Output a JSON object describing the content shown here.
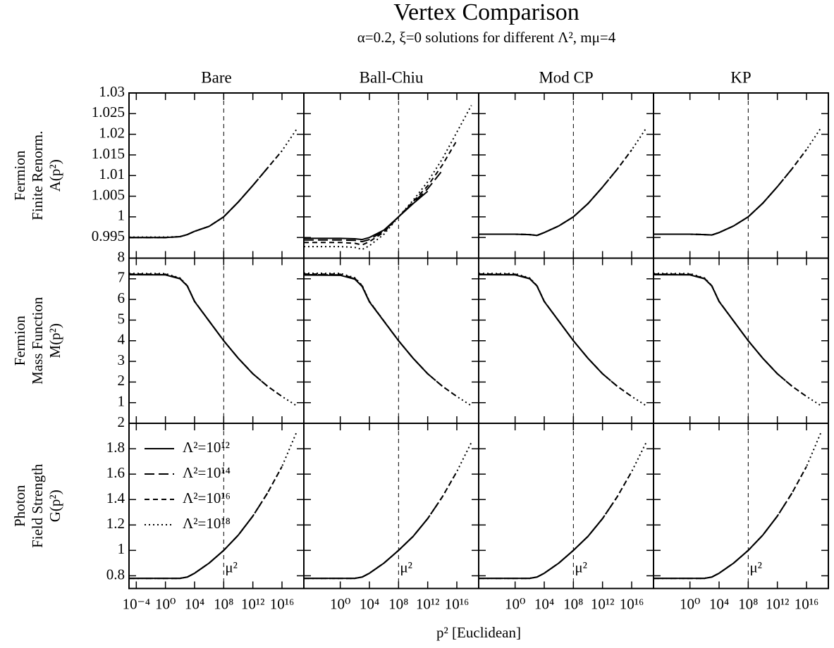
{
  "chart_data": {
    "type": "line",
    "title": "Vertex Comparison",
    "subtitle": "α=0.2, ξ=0 solutions for different Λ², mμ=4",
    "xlabel": "p² [Euclidean]",
    "log_x": true,
    "xlim": [
      1e-05,
      1e+19
    ],
    "x": [
      1e-05,
      1,
      100,
      1000,
      10000,
      1000000,
      100000000,
      10000000000,
      1000000000000,
      100000000000000,
      10000000000000000,
      1000000000000000000
    ],
    "reference": {
      "value": 100000000,
      "label": "μ²"
    },
    "legend": "upper left",
    "series": [
      {
        "name": "Λ²=10¹²",
        "color": "#000000",
        "dash": "solid"
      },
      {
        "name": "Λ²=10¹⁴",
        "color": "#000000",
        "dash": "longdash"
      },
      {
        "name": "Λ²=10¹⁶",
        "color": "#000000",
        "dash": "dashed"
      },
      {
        "name": "Λ²=10¹⁸",
        "color": "#000000",
        "dash": "dotted"
      }
    ],
    "columns": [
      {
        "title": "Bare",
        "xticks": [
          {
            "value": 0.0001,
            "label": "10⁻⁴"
          },
          {
            "value": 1,
            "label": "10⁰"
          },
          {
            "value": 10000,
            "label": "10⁴"
          },
          {
            "value": 100000000,
            "label": "10⁸"
          },
          {
            "value": 1000000000000,
            "label": "10¹²"
          },
          {
            "value": 10000000000000000,
            "label": "10¹⁶"
          }
        ]
      },
      {
        "title": "Ball-Chiu",
        "xticks": [
          {
            "value": 1,
            "label": "10⁰"
          },
          {
            "value": 10000,
            "label": "10⁴"
          },
          {
            "value": 100000000,
            "label": "10⁸"
          },
          {
            "value": 1000000000000,
            "label": "10¹²"
          },
          {
            "value": 10000000000000000,
            "label": "10¹⁶"
          }
        ]
      },
      {
        "title": "Mod CP",
        "xticks": [
          {
            "value": 1,
            "label": "10⁰"
          },
          {
            "value": 10000,
            "label": "10⁴"
          },
          {
            "value": 100000000,
            "label": "10⁸"
          },
          {
            "value": 1000000000000,
            "label": "10¹²"
          },
          {
            "value": 10000000000000000,
            "label": "10¹⁶"
          }
        ]
      },
      {
        "title": "KP",
        "xticks": [
          {
            "value": 1,
            "label": "10⁰"
          },
          {
            "value": 10000,
            "label": "10⁴"
          },
          {
            "value": 100000000,
            "label": "10⁸"
          },
          {
            "value": 1000000000000,
            "label": "10¹²"
          },
          {
            "value": 10000000000000000,
            "label": "10¹⁶"
          }
        ]
      }
    ],
    "rows": [
      {
        "ylabel": [
          "Fermion",
          "Finite Renorm.",
          "A(p²)"
        ],
        "ylim": [
          0.99,
          1.03
        ],
        "yticks": [
          0.995,
          1,
          1.005,
          1.01,
          1.015,
          1.02,
          1.025,
          1.03
        ],
        "panels": [
          {
            "series": [
              [
                0.995,
                0.995,
                0.9952,
                0.9957,
                0.9965,
                0.9977,
                1,
                1.0036,
                1.0076,
                null,
                null,
                null
              ],
              [
                0.995,
                0.995,
                0.9952,
                0.9957,
                0.9965,
                0.9977,
                1,
                1.0036,
                1.0076,
                1.0118,
                null,
                null
              ],
              [
                0.995,
                0.995,
                0.9952,
                0.9957,
                0.9965,
                0.9977,
                1,
                1.0036,
                1.0076,
                1.0118,
                1.016,
                null
              ],
              [
                0.9951,
                0.9951,
                0.9952,
                0.9957,
                0.9965,
                0.9977,
                1,
                1.0036,
                1.0076,
                1.0118,
                1.016,
                1.0212
              ]
            ]
          },
          {
            "series": [
              [
                0.9948,
                0.9948,
                0.9947,
                0.9945,
                0.995,
                0.9968,
                1,
                1.0032,
                1.0062,
                null,
                null,
                null
              ],
              [
                0.9944,
                0.9944,
                0.9943,
                0.994,
                0.9945,
                0.9966,
                1,
                1.0034,
                1.0068,
                1.0112,
                null,
                null
              ],
              [
                0.9938,
                0.9938,
                0.9936,
                0.9932,
                0.994,
                0.9963,
                1,
                1.0037,
                1.0075,
                1.0125,
                1.0185,
                null
              ],
              [
                0.9928,
                0.9928,
                0.9926,
                0.9921,
                0.993,
                0.9958,
                1,
                1.004,
                1.0085,
                1.014,
                1.0205,
                1.027
              ]
            ]
          },
          {
            "series": [
              [
                0.9958,
                0.9958,
                0.9957,
                0.9955,
                0.9962,
                0.9978,
                1,
                1.0032,
                1.0072,
                null,
                null,
                null
              ],
              [
                0.9958,
                0.9958,
                0.9957,
                0.9955,
                0.9962,
                0.9978,
                1,
                1.0032,
                1.0072,
                1.0115,
                null,
                null
              ],
              [
                0.9958,
                0.9958,
                0.9957,
                0.9955,
                0.9962,
                0.9978,
                1,
                1.0032,
                1.0072,
                1.0115,
                1.0162,
                null
              ],
              [
                0.9958,
                0.9958,
                0.9957,
                0.9955,
                0.9962,
                0.9978,
                1,
                1.0032,
                1.0072,
                1.0115,
                1.0162,
                1.0215
              ]
            ]
          },
          {
            "series": [
              [
                0.9958,
                0.9958,
                0.9957,
                0.9956,
                0.9962,
                0.9978,
                1,
                1.0033,
                1.0073,
                null,
                null,
                null
              ],
              [
                0.9958,
                0.9958,
                0.9957,
                0.9956,
                0.9962,
                0.9978,
                1,
                1.0033,
                1.0073,
                1.0116,
                null,
                null
              ],
              [
                0.9958,
                0.9958,
                0.9957,
                0.9956,
                0.9962,
                0.9978,
                1,
                1.0033,
                1.0073,
                1.0116,
                1.0163,
                null
              ],
              [
                0.9958,
                0.9958,
                0.9957,
                0.9956,
                0.9962,
                0.9978,
                1,
                1.0033,
                1.0073,
                1.0116,
                1.0163,
                1.0216
              ]
            ]
          }
        ]
      },
      {
        "ylabel": [
          "Fermion",
          "Mass Function",
          "M(p²)"
        ],
        "ylim": [
          0,
          8
        ],
        "yticks": [
          1,
          2,
          3,
          4,
          5,
          6,
          7,
          8
        ],
        "panels": [
          {
            "series": [
              [
                7.2,
                7.19,
                7.0,
                6.65,
                5.9,
                4.95,
                4,
                3.15,
                2.4,
                null,
                null,
                null
              ],
              [
                7.21,
                7.2,
                7.01,
                6.66,
                5.9,
                4.95,
                4,
                3.15,
                2.4,
                1.8,
                null,
                null
              ],
              [
                7.23,
                7.22,
                7.02,
                6.66,
                5.91,
                4.95,
                4,
                3.15,
                2.4,
                1.8,
                1.3,
                null
              ],
              [
                7.26,
                7.25,
                7.04,
                6.67,
                5.91,
                4.95,
                4,
                3.15,
                2.4,
                1.8,
                1.3,
                0.85
              ]
            ]
          },
          {
            "series": [
              [
                7.18,
                7.17,
                6.98,
                6.63,
                5.88,
                4.94,
                4,
                3.15,
                2.4,
                null,
                null,
                null
              ],
              [
                7.2,
                7.19,
                7.0,
                6.64,
                5.89,
                4.94,
                4,
                3.15,
                2.4,
                1.8,
                null,
                null
              ],
              [
                7.23,
                7.22,
                7.02,
                6.66,
                5.9,
                4.95,
                4,
                3.15,
                2.4,
                1.8,
                1.3,
                null
              ],
              [
                7.27,
                7.26,
                7.05,
                6.68,
                5.91,
                4.95,
                4,
                3.15,
                2.4,
                1.8,
                1.3,
                0.85
              ]
            ]
          },
          {
            "series": [
              [
                7.2,
                7.19,
                7.0,
                6.65,
                5.9,
                4.95,
                4,
                3.15,
                2.4,
                null,
                null,
                null
              ],
              [
                7.21,
                7.2,
                7.01,
                6.66,
                5.9,
                4.95,
                4,
                3.15,
                2.4,
                1.8,
                null,
                null
              ],
              [
                7.23,
                7.22,
                7.02,
                6.66,
                5.91,
                4.95,
                4,
                3.15,
                2.4,
                1.8,
                1.3,
                null
              ],
              [
                7.26,
                7.25,
                7.04,
                6.67,
                5.91,
                4.95,
                4,
                3.15,
                2.4,
                1.8,
                1.3,
                0.85
              ]
            ]
          },
          {
            "series": [
              [
                7.2,
                7.19,
                7.0,
                6.65,
                5.9,
                4.95,
                4,
                3.15,
                2.4,
                null,
                null,
                null
              ],
              [
                7.21,
                7.2,
                7.01,
                6.66,
                5.9,
                4.95,
                4,
                3.15,
                2.4,
                1.8,
                null,
                null
              ],
              [
                7.23,
                7.22,
                7.02,
                6.66,
                5.91,
                4.95,
                4,
                3.15,
                2.4,
                1.8,
                1.3,
                null
              ],
              [
                7.26,
                7.25,
                7.04,
                6.67,
                5.91,
                4.95,
                4,
                3.15,
                2.4,
                1.8,
                1.3,
                0.85
              ]
            ]
          }
        ]
      },
      {
        "ylabel": [
          "Photon",
          "Field Strength",
          "G(p²)"
        ],
        "ylim": [
          0.7,
          2
        ],
        "yticks": [
          0.8,
          1,
          1.2,
          1.4,
          1.6,
          1.8,
          2
        ],
        "panels": [
          {
            "series": [
              [
                0.78,
                0.78,
                0.78,
                0.79,
                0.82,
                0.9,
                1,
                1.12,
                1.27,
                null,
                null,
                null
              ],
              [
                0.78,
                0.78,
                0.78,
                0.79,
                0.82,
                0.9,
                1,
                1.12,
                1.27,
                1.45,
                null,
                null
              ],
              [
                0.78,
                0.78,
                0.78,
                0.79,
                0.82,
                0.9,
                1,
                1.12,
                1.27,
                1.45,
                1.66,
                null
              ],
              [
                0.78,
                0.78,
                0.78,
                0.79,
                0.82,
                0.9,
                1,
                1.12,
                1.27,
                1.45,
                1.66,
                1.93
              ]
            ]
          },
          {
            "series": [
              [
                0.78,
                0.78,
                0.78,
                0.79,
                0.82,
                0.9,
                1,
                1.11,
                1.25,
                null,
                null,
                null
              ],
              [
                0.78,
                0.78,
                0.78,
                0.79,
                0.82,
                0.9,
                1,
                1.11,
                1.25,
                1.42,
                null,
                null
              ],
              [
                0.78,
                0.78,
                0.78,
                0.79,
                0.82,
                0.9,
                1,
                1.11,
                1.25,
                1.42,
                1.62,
                null
              ],
              [
                0.78,
                0.78,
                0.78,
                0.79,
                0.82,
                0.9,
                1,
                1.11,
                1.25,
                1.42,
                1.62,
                1.85
              ]
            ]
          },
          {
            "series": [
              [
                0.78,
                0.78,
                0.78,
                0.79,
                0.82,
                0.9,
                1,
                1.11,
                1.25,
                null,
                null,
                null
              ],
              [
                0.78,
                0.78,
                0.78,
                0.79,
                0.82,
                0.9,
                1,
                1.11,
                1.25,
                1.42,
                null,
                null
              ],
              [
                0.78,
                0.78,
                0.78,
                0.79,
                0.82,
                0.9,
                1,
                1.11,
                1.25,
                1.42,
                1.62,
                null
              ],
              [
                0.78,
                0.78,
                0.78,
                0.79,
                0.82,
                0.9,
                1,
                1.11,
                1.25,
                1.42,
                1.62,
                1.85
              ]
            ]
          },
          {
            "series": [
              [
                0.78,
                0.78,
                0.78,
                0.79,
                0.82,
                0.9,
                1,
                1.12,
                1.27,
                null,
                null,
                null
              ],
              [
                0.78,
                0.78,
                0.78,
                0.79,
                0.82,
                0.9,
                1,
                1.12,
                1.27,
                1.45,
                null,
                null
              ],
              [
                0.78,
                0.78,
                0.78,
                0.79,
                0.82,
                0.9,
                1,
                1.12,
                1.27,
                1.45,
                1.66,
                null
              ],
              [
                0.78,
                0.78,
                0.78,
                0.79,
                0.82,
                0.9,
                1,
                1.12,
                1.27,
                1.45,
                1.66,
                1.93
              ]
            ]
          }
        ]
      }
    ]
  }
}
